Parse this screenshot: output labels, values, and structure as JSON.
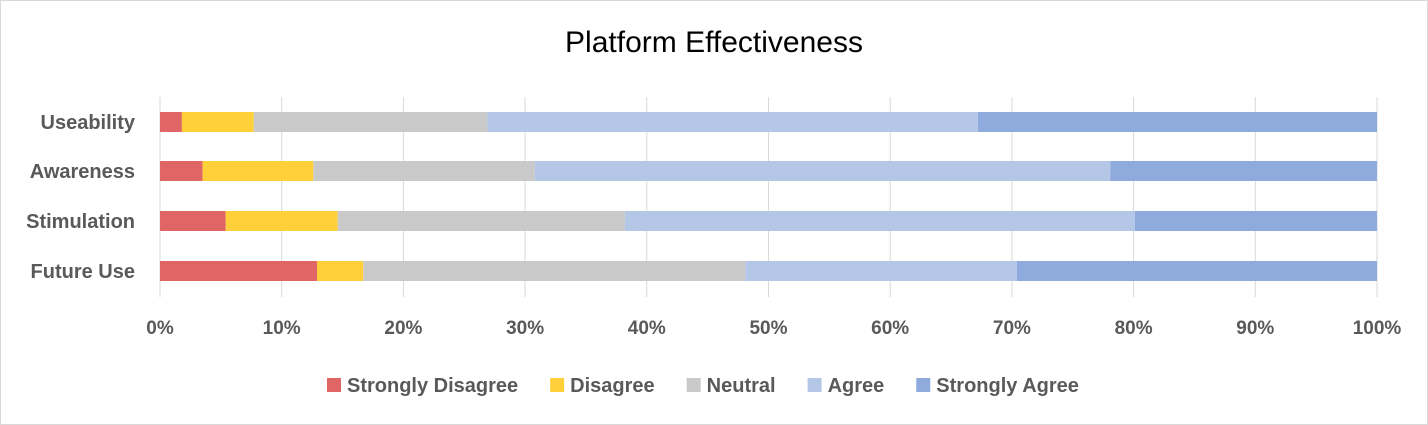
{
  "chart_data": {
    "type": "bar",
    "orientation": "horizontal",
    "stacked": "percent",
    "title": "Platform Effectiveness",
    "categories": [
      "Useability",
      "Awareness",
      "Stimulation",
      "Future Use"
    ],
    "x_ticks": [
      "0%",
      "10%",
      "20%",
      "30%",
      "40%",
      "50%",
      "60%",
      "70%",
      "80%",
      "90%",
      "100%"
    ],
    "xlim": [
      0,
      100
    ],
    "grid": true,
    "legend_position": "bottom",
    "series": [
      {
        "name": "Strongly Disagree",
        "color": "#e06666",
        "values": [
          1.8,
          3.5,
          5.4,
          12.9
        ]
      },
      {
        "name": "Disagree",
        "color": "#ffd03a",
        "values": [
          5.9,
          9.1,
          9.2,
          3.8
        ]
      },
      {
        "name": "Neutral",
        "color": "#c9c9c9",
        "values": [
          19.2,
          18.2,
          23.6,
          31.4
        ]
      },
      {
        "name": "Agree",
        "color": "#b4c7e7",
        "values": [
          40.3,
          47.3,
          41.9,
          22.3
        ]
      },
      {
        "name": "Strongly Agree",
        "color": "#8faadc",
        "values": [
          32.8,
          21.9,
          19.9,
          29.6
        ]
      }
    ]
  }
}
